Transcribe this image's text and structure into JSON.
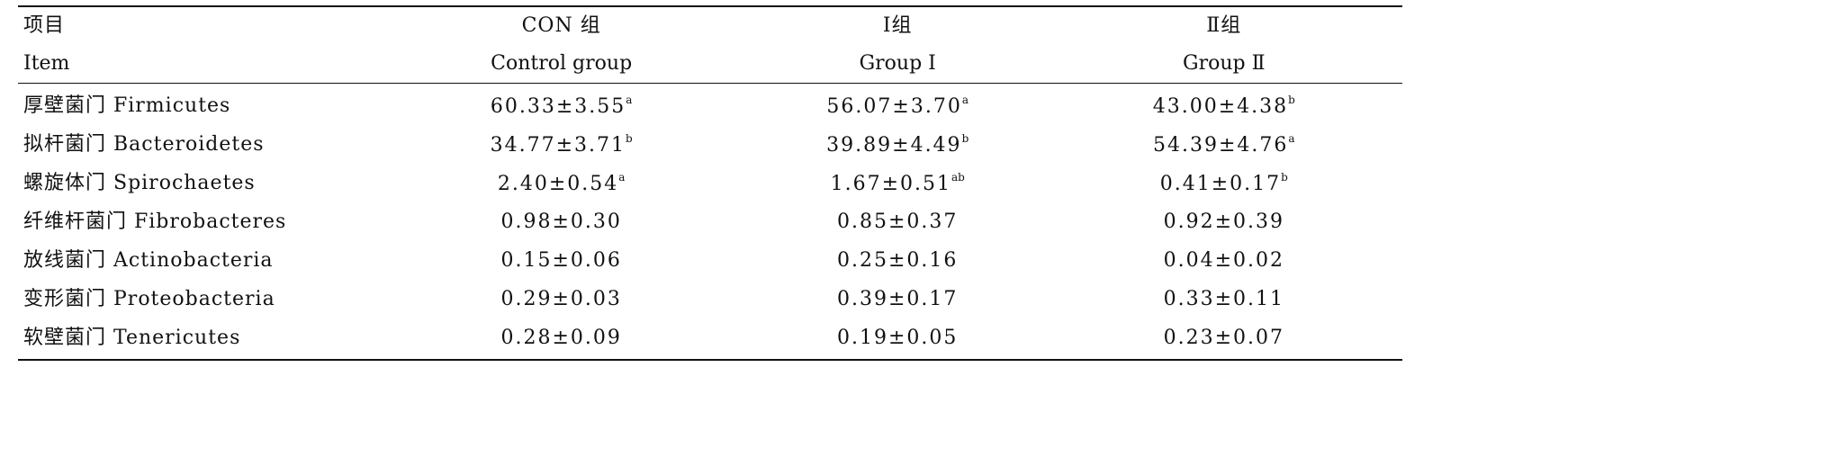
{
  "table": {
    "header": {
      "zh": [
        "项目",
        "CON 组",
        "Ⅰ组",
        "Ⅱ组"
      ],
      "en": [
        "Item",
        "Control group",
        "Group Ⅰ",
        "Group Ⅱ"
      ]
    },
    "rows": [
      {
        "item": "厚壁菌门 Firmicutes",
        "v": [
          "60.33±3.55",
          "56.07±3.70",
          "43.00±4.38"
        ],
        "sup": [
          "a",
          "a",
          "b"
        ]
      },
      {
        "item": "拟杆菌门 Bacteroidetes",
        "v": [
          "34.77±3.71",
          "39.89±4.49",
          "54.39±4.76"
        ],
        "sup": [
          "b",
          "b",
          "a"
        ]
      },
      {
        "item": "螺旋体门 Spirochaetes",
        "v": [
          "2.40±0.54",
          "1.67±0.51",
          "0.41±0.17"
        ],
        "sup": [
          "a",
          "ab",
          "b"
        ]
      },
      {
        "item": "纤维杆菌门 Fibrobacteres",
        "v": [
          "0.98±0.30",
          "0.85±0.37",
          "0.92±0.39"
        ],
        "sup": [
          "",
          "",
          ""
        ]
      },
      {
        "item": "放线菌门 Actinobacteria",
        "v": [
          "0.15±0.06",
          "0.25±0.16",
          "0.04±0.02"
        ],
        "sup": [
          "",
          "",
          ""
        ]
      },
      {
        "item": "变形菌门 Proteobacteria",
        "v": [
          "0.29±0.03",
          "0.39±0.17",
          "0.33±0.11"
        ],
        "sup": [
          "",
          "",
          ""
        ]
      },
      {
        "item": "软壁菌门 Tenericutes",
        "v": [
          "0.28±0.09",
          "0.19±0.05",
          "0.23±0.07"
        ],
        "sup": [
          "",
          "",
          ""
        ]
      }
    ]
  }
}
